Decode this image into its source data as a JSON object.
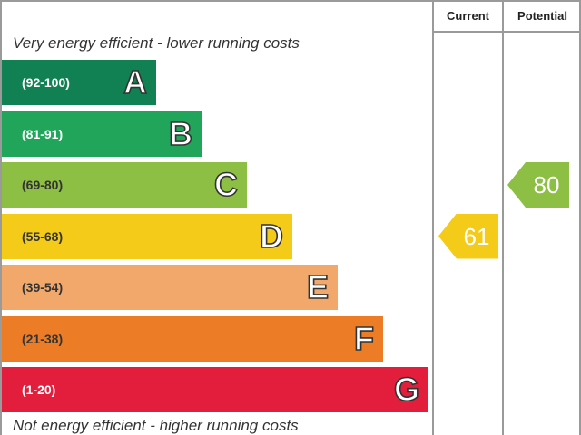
{
  "header": {
    "current_label": "Current",
    "potential_label": "Potential"
  },
  "captions": {
    "top": "Very energy efficient - lower running costs",
    "bottom": "Not energy efficient - higher running costs"
  },
  "chart_data": {
    "type": "bar",
    "categories": [
      "A",
      "B",
      "C",
      "D",
      "E",
      "F",
      "G"
    ],
    "ranges": [
      "(92-100)",
      "(81-91)",
      "(69-80)",
      "(55-68)",
      "(39-54)",
      "(21-38)",
      "(1-20)"
    ],
    "band_min": [
      92,
      81,
      69,
      55,
      39,
      21,
      1
    ],
    "band_max": [
      100,
      91,
      80,
      68,
      54,
      38,
      20
    ],
    "colors": [
      "#118052",
      "#20a55b",
      "#8dbf44",
      "#f3cb18",
      "#f2a86b",
      "#ec7d26",
      "#e31d3c"
    ],
    "range_text_colors": [
      "#ffffff",
      "#ffffff",
      "#333333",
      "#333333",
      "#333333",
      "#333333",
      "#ffffff"
    ],
    "current": {
      "value": 61,
      "rating": "D",
      "color": "#f3cb18"
    },
    "potential": {
      "value": 80,
      "rating": "C",
      "color": "#8dbf44"
    }
  }
}
